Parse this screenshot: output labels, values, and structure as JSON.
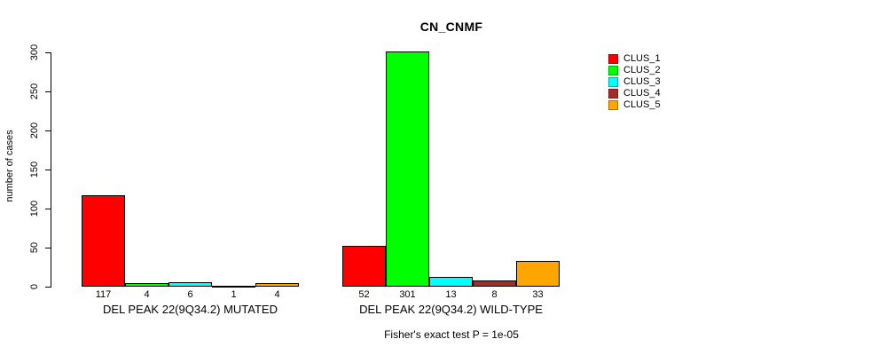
{
  "footer": "Fisher's exact test P = 1e-05",
  "chart_data": {
    "type": "bar",
    "title": "CN_CNMF",
    "xlabel": "",
    "ylabel": "number of cases",
    "ylim": [
      0,
      300
    ],
    "yticks": [
      0,
      50,
      100,
      150,
      200,
      250,
      300
    ],
    "grid": false,
    "legend_position": "right-outside",
    "bar_border_color": "#000000",
    "series": [
      {
        "name": "CLUS_1",
        "color": "#FF0000"
      },
      {
        "name": "CLUS_2",
        "color": "#00FF00"
      },
      {
        "name": "CLUS_3",
        "color": "#00FFFF"
      },
      {
        "name": "CLUS_4",
        "color": "#A52A2A"
      },
      {
        "name": "CLUS_5",
        "color": "#FFA500"
      }
    ],
    "groups": [
      {
        "label": "DEL PEAK 22(9Q34.2) MUTATED",
        "values": [
          117,
          4,
          6,
          1,
          4
        ]
      },
      {
        "label": "DEL PEAK 22(9Q34.2) WILD-TYPE",
        "values": [
          52,
          301,
          13,
          8,
          33
        ]
      }
    ]
  }
}
